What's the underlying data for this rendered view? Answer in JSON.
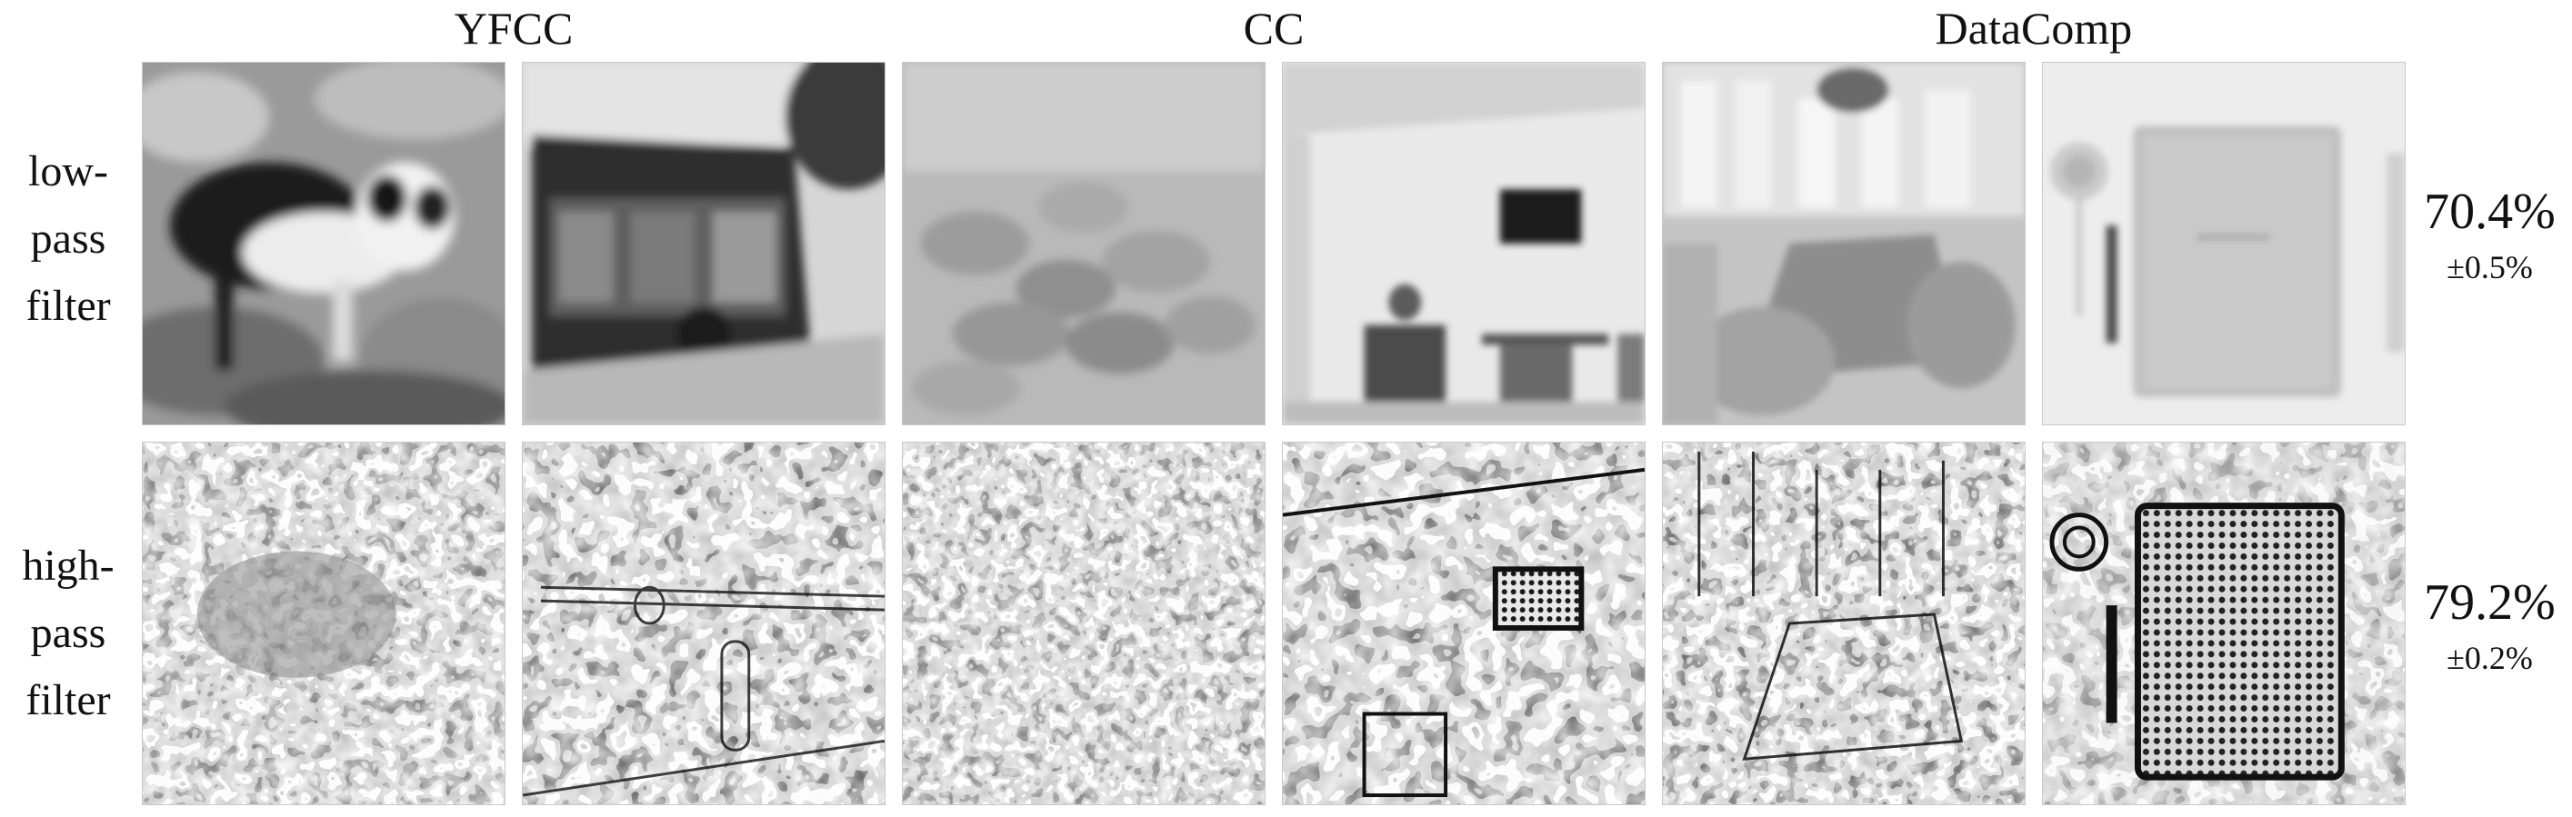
{
  "headers": [
    "YFCC",
    "CC",
    "DataComp"
  ],
  "rows": [
    {
      "label_lines": [
        "low-",
        "pass",
        "filter"
      ],
      "accuracy": "70.4%",
      "std": "±0.5%",
      "tiles": [
        {
          "subject": "dog on rocks",
          "filter": "low-pass"
        },
        {
          "subject": "bus by roadside",
          "filter": "low-pass"
        },
        {
          "subject": "herd of sheep on hillside",
          "filter": "low-pass"
        },
        {
          "subject": "room with desk and wall-mounted TV",
          "filter": "low-pass"
        },
        {
          "subject": "sunroom with dining table",
          "filter": "low-pass"
        },
        {
          "subject": "notebook, pen and lollipop",
          "filter": "low-pass"
        }
      ]
    },
    {
      "label_lines": [
        "high-",
        "pass",
        "filter"
      ],
      "accuracy": "79.2%",
      "std": "±0.2%",
      "tiles": [
        {
          "subject": "dog on rocks",
          "filter": "high-pass"
        },
        {
          "subject": "bus by roadside",
          "filter": "high-pass"
        },
        {
          "subject": "herd of sheep on hillside",
          "filter": "high-pass"
        },
        {
          "subject": "room with desk and wall-mounted TV",
          "filter": "high-pass"
        },
        {
          "subject": "sunroom with dining table",
          "filter": "high-pass"
        },
        {
          "subject": "notebook, pen and lollipop",
          "filter": "high-pass"
        }
      ]
    }
  ]
}
